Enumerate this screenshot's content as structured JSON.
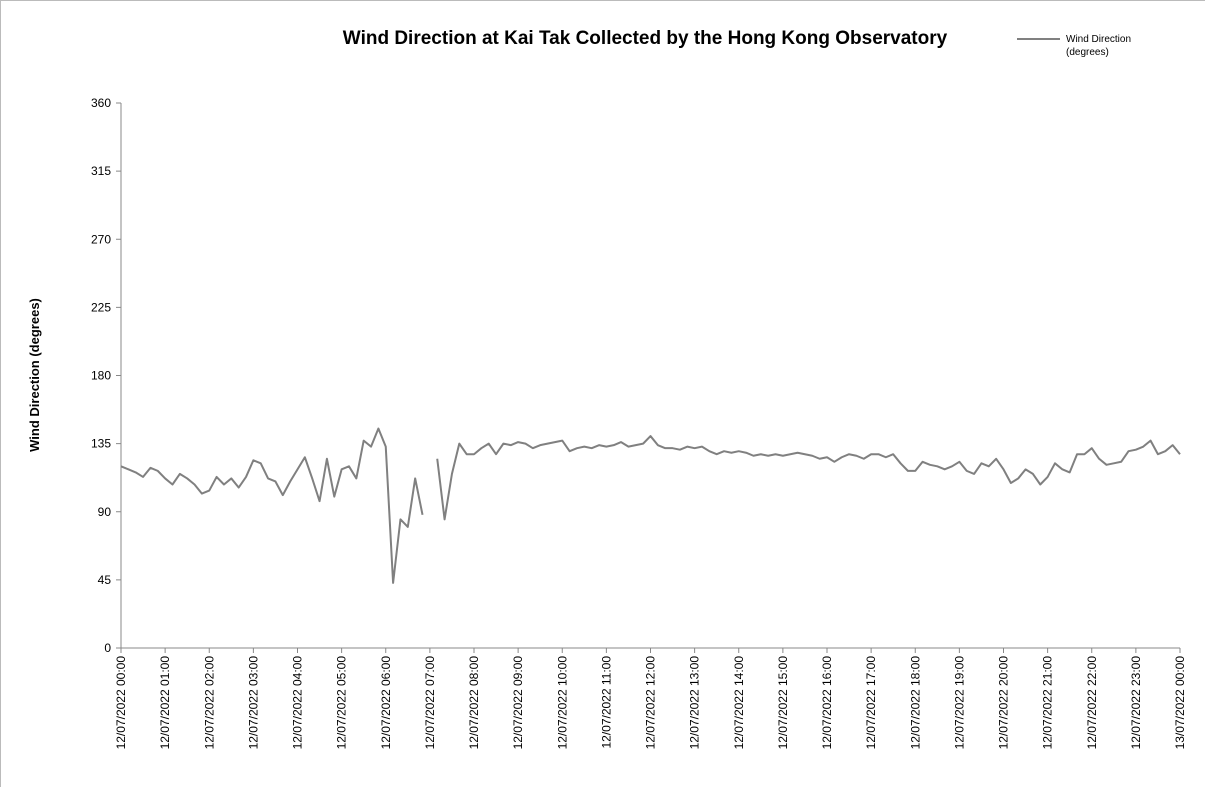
{
  "chart_data": {
    "type": "line",
    "title": "Wind Direction at Kai Tak Collected by the Hong Kong Observatory",
    "y_label": "Wind Direction (degrees)",
    "categories": [
      "12/07/2022 00:00",
      null,
      null,
      null,
      null,
      null,
      "12/07/2022 01:00",
      null,
      null,
      null,
      null,
      null,
      "12/07/2022 02:00",
      null,
      null,
      null,
      null,
      null,
      "12/07/2022 03:00",
      null,
      null,
      null,
      null,
      null,
      "12/07/2022 04:00",
      null,
      null,
      null,
      null,
      null,
      "12/07/2022 05:00",
      null,
      null,
      null,
      null,
      null,
      "12/07/2022 06:00",
      null,
      null,
      null,
      null,
      null,
      "12/07/2022 07:00",
      null,
      null,
      null,
      null,
      null,
      "12/07/2022 08:00",
      null,
      null,
      null,
      null,
      null,
      "12/07/2022 09:00",
      null,
      null,
      null,
      null,
      null,
      "12/07/2022 10:00",
      null,
      null,
      null,
      null,
      null,
      "12/07/2022 11:00",
      null,
      null,
      null,
      null,
      null,
      "12/07/2022 12:00",
      null,
      null,
      null,
      null,
      null,
      "12/07/2022 13:00",
      null,
      null,
      null,
      null,
      null,
      "12/07/2022 14:00",
      null,
      null,
      null,
      null,
      null,
      "12/07/2022 15:00",
      null,
      null,
      null,
      null,
      null,
      "12/07/2022 16:00",
      null,
      null,
      null,
      null,
      null,
      "12/07/2022 17:00",
      null,
      null,
      null,
      null,
      null,
      "12/07/2022 18:00",
      null,
      null,
      null,
      null,
      null,
      "12/07/2022 19:00",
      null,
      null,
      null,
      null,
      null,
      "12/07/2022 20:00",
      null,
      null,
      null,
      null,
      null,
      "12/07/2022 21:00",
      null,
      null,
      null,
      null,
      null,
      "12/07/2022 22:00",
      null,
      null,
      null,
      null,
      null,
      "12/07/2022 23:00",
      null,
      null,
      null,
      null,
      null,
      "13/07/2022 00:00"
    ],
    "series": [
      {
        "name": "Wind Direction (degrees)",
        "color": "#808080",
        "values": [
          120,
          118,
          116,
          113,
          119,
          117,
          112,
          108,
          115,
          112,
          108,
          102,
          104,
          113,
          108,
          112,
          106,
          113,
          124,
          122,
          112,
          110,
          101,
          110,
          118,
          126,
          112,
          97,
          125,
          100,
          118,
          120,
          112,
          137,
          133,
          145,
          133,
          43,
          85,
          80,
          112,
          88,
          null,
          125,
          85,
          115,
          135,
          128,
          128,
          132,
          135,
          128,
          135,
          134,
          136,
          135,
          132,
          134,
          135,
          136,
          137,
          130,
          132,
          133,
          132,
          134,
          133,
          134,
          136,
          133,
          134,
          135,
          140,
          134,
          132,
          132,
          131,
          133,
          132,
          133,
          130,
          128,
          130,
          129,
          130,
          129,
          127,
          128,
          127,
          128,
          127,
          128,
          129,
          128,
          127,
          125,
          126,
          123,
          126,
          128,
          127,
          125,
          128,
          128,
          126,
          128,
          122,
          117,
          117,
          123,
          121,
          120,
          118,
          120,
          123,
          117,
          115,
          122,
          120,
          125,
          118,
          109,
          112,
          118,
          115,
          108,
          113,
          122,
          118,
          116,
          128,
          128,
          132,
          125,
          121,
          122,
          123,
          130,
          131,
          133,
          137,
          128,
          130,
          134,
          128
        ]
      }
    ],
    "ylim": [
      0,
      360
    ],
    "yticks": [
      0,
      45,
      90,
      135,
      180,
      225,
      270,
      315,
      360
    ],
    "grid": false,
    "legend": "top-right"
  }
}
